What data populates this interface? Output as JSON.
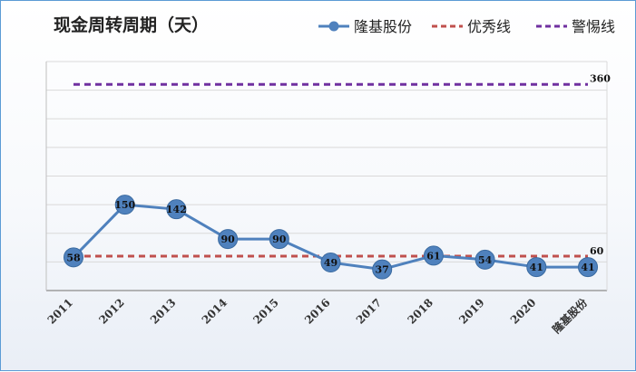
{
  "chart_data": {
    "type": "line",
    "title": "现金周转周期（天）",
    "categories": [
      "2011",
      "2012",
      "2013",
      "2014",
      "2015",
      "2016",
      "2017",
      "2018",
      "2019",
      "2020",
      "隆基股份"
    ],
    "series": [
      {
        "name": "隆基股份",
        "values": [
          58,
          150,
          142,
          90,
          90,
          49,
          37,
          61,
          54,
          41,
          41
        ],
        "color": "#4f81bd",
        "style": "solid-markers"
      },
      {
        "name": "优秀线",
        "values": [
          60,
          60,
          60,
          60,
          60,
          60,
          60,
          60,
          60,
          60,
          60
        ],
        "color": "#c0504d",
        "style": "dashed"
      },
      {
        "name": "警惕线",
        "values": [
          360,
          360,
          360,
          360,
          360,
          360,
          360,
          360,
          360,
          360,
          360
        ],
        "color": "#7030a0",
        "style": "dashed"
      }
    ],
    "ref_labels": [
      "360",
      "60"
    ],
    "ylim": [
      0,
      400
    ],
    "grid": true,
    "legend": "top-right",
    "xlabel": "",
    "ylabel": ""
  }
}
